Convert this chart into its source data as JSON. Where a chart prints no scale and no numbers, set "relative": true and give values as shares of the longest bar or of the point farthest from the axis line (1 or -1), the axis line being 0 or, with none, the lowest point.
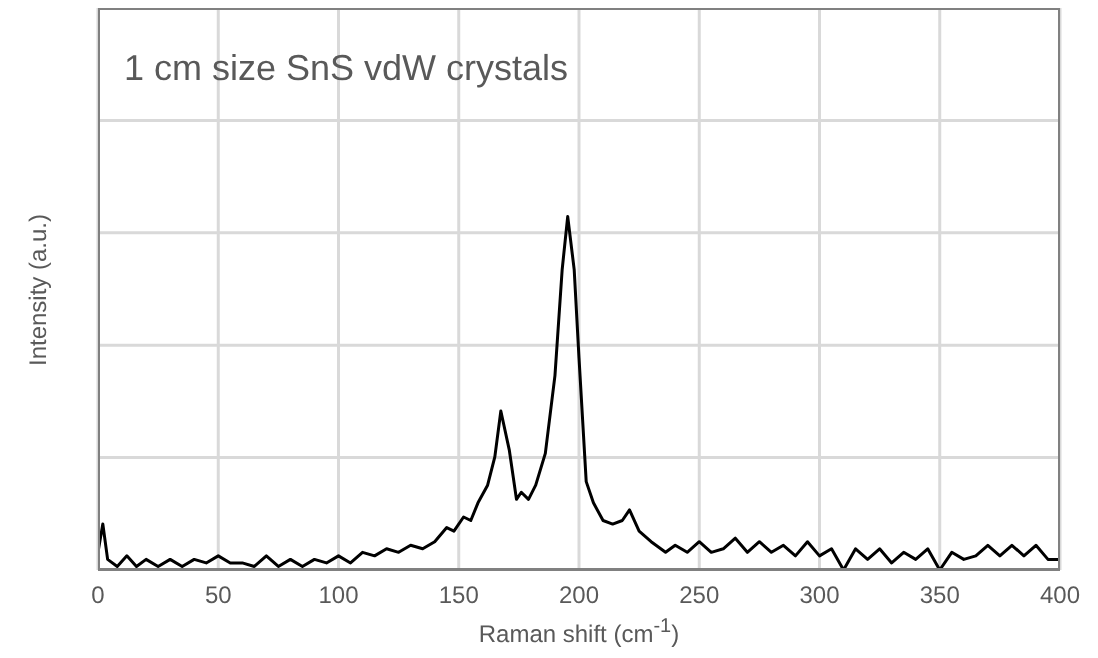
{
  "chart_data": {
    "type": "line",
    "title": "1 cm size SnS vdW crystals",
    "xlabel": "Raman shift (cm$^{-1}$)",
    "ylabel": "Intensity (a.u.)",
    "relative": true,
    "grid": true,
    "xlim": [
      0,
      400
    ],
    "xticks": [
      0,
      50,
      100,
      150,
      200,
      250,
      300,
      350,
      400
    ],
    "series": [
      {
        "color": "#000000",
        "x": [
          0,
          2,
          4,
          8,
          12,
          16,
          20,
          25,
          30,
          35,
          40,
          45,
          50,
          55,
          60,
          65,
          70,
          75,
          80,
          85,
          90,
          95,
          100,
          105,
          110,
          115,
          120,
          125,
          130,
          135,
          140,
          145,
          148,
          152,
          155,
          158,
          162,
          165,
          167.5,
          171,
          174,
          176,
          179,
          182,
          186,
          190,
          193,
          195.3,
          198,
          200,
          203,
          206,
          210,
          214,
          218,
          221,
          225,
          230,
          236,
          240,
          245,
          250,
          255,
          260,
          265,
          270,
          275,
          280,
          285,
          290,
          295,
          300,
          305,
          310,
          315,
          320,
          325,
          330,
          335,
          340,
          345,
          350,
          355,
          360,
          365,
          370,
          375,
          380,
          385,
          390,
          395,
          400
        ],
        "values": [
          0.05,
          0.13,
          0.03,
          0.01,
          0.04,
          0.01,
          0.03,
          0.01,
          0.03,
          0.01,
          0.03,
          0.02,
          0.04,
          0.02,
          0.02,
          0.01,
          0.04,
          0.01,
          0.03,
          0.01,
          0.03,
          0.02,
          0.04,
          0.02,
          0.05,
          0.04,
          0.06,
          0.05,
          0.07,
          0.06,
          0.08,
          0.12,
          0.11,
          0.15,
          0.14,
          0.19,
          0.24,
          0.32,
          0.45,
          0.34,
          0.2,
          0.22,
          0.2,
          0.24,
          0.33,
          0.55,
          0.85,
          1,
          0.85,
          0.6,
          0.25,
          0.19,
          0.14,
          0.13,
          0.14,
          0.17,
          0.11,
          0.08,
          0.05,
          0.07,
          0.05,
          0.08,
          0.05,
          0.06,
          0.09,
          0.05,
          0.08,
          0.05,
          0.07,
          0.04,
          0.08,
          0.04,
          0.06,
          0.0,
          0.06,
          0.03,
          0.06,
          0.02,
          0.05,
          0.03,
          0.06,
          0.0,
          0.05,
          0.03,
          0.04,
          0.07,
          0.04,
          0.07,
          0.04,
          0.07,
          0.03,
          0.03
        ]
      }
    ]
  }
}
